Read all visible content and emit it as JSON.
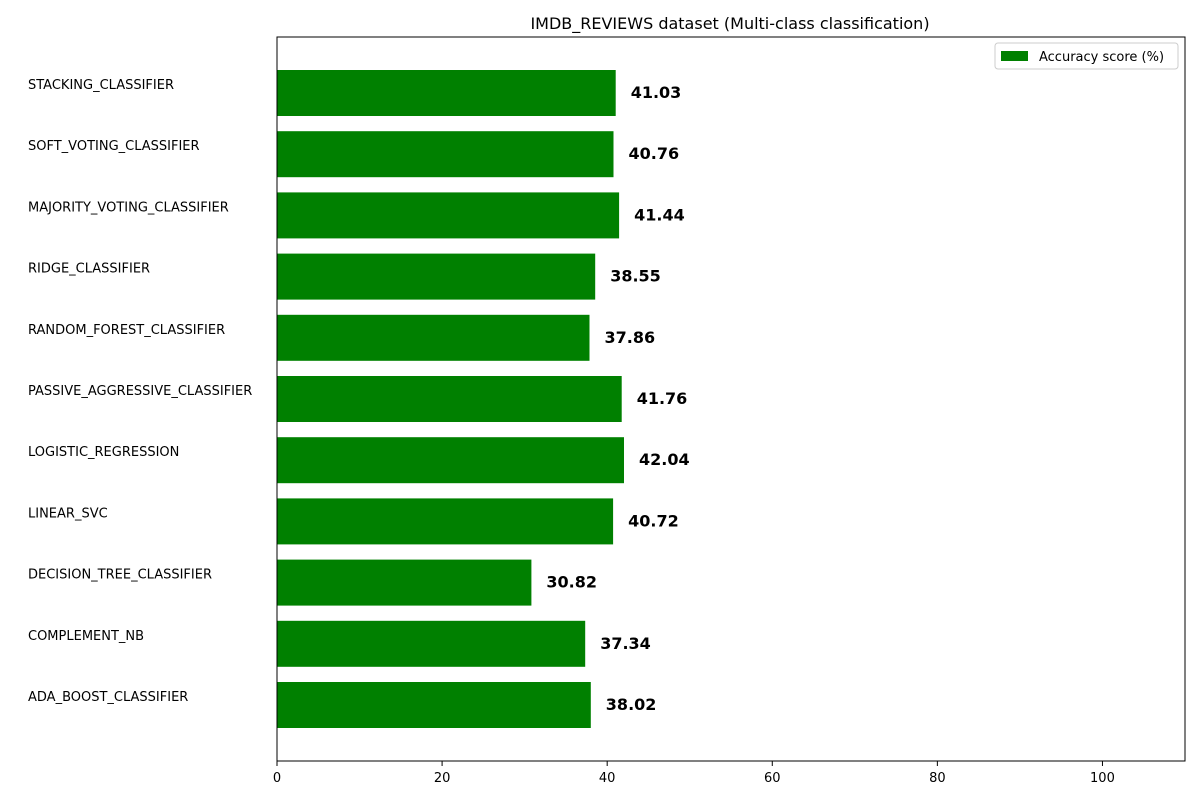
{
  "chart_data": {
    "type": "bar",
    "orientation": "horizontal",
    "title": "IMDB_REVIEWS dataset (Multi-class classification)",
    "xlabel": "",
    "ylabel": "",
    "categories": [
      "STACKING_CLASSIFIER",
      "SOFT_VOTING_CLASSIFIER",
      "MAJORITY_VOTING_CLASSIFIER",
      "RIDGE_CLASSIFIER",
      "RANDOM_FOREST_CLASSIFIER",
      "PASSIVE_AGGRESSIVE_CLASSIFIER",
      "LOGISTIC_REGRESSION",
      "LINEAR_SVC",
      "DECISION_TREE_CLASSIFIER",
      "COMPLEMENT_NB",
      "ADA_BOOST_CLASSIFIER"
    ],
    "series": [
      {
        "name": "Accuracy score (%)",
        "color": "#008000",
        "values": [
          41.03,
          40.76,
          41.44,
          38.55,
          37.86,
          41.76,
          42.04,
          40.72,
          30.82,
          37.34,
          38.02
        ],
        "value_labels": [
          "41.03",
          "40.76",
          "41.44",
          "38.55",
          "37.86",
          "41.76",
          "42.04",
          "40.72",
          "30.82",
          "37.34",
          "38.02"
        ]
      }
    ],
    "xlim": [
      0,
      110
    ],
    "xticks": [
      0,
      20,
      40,
      60,
      80,
      100
    ],
    "xtick_labels": [
      "0",
      "20",
      "40",
      "60",
      "80",
      "100"
    ],
    "grid": false,
    "legend_position": "top-right"
  }
}
